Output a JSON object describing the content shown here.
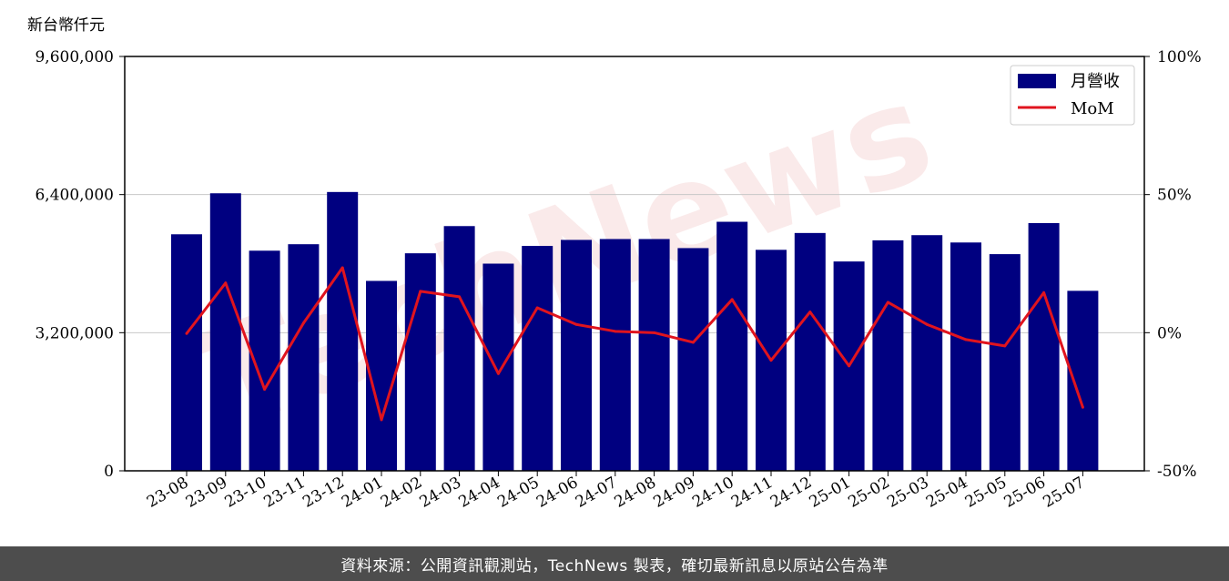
{
  "chart_data": {
    "type": "bar",
    "unit_label": "新台幣仟元",
    "categories": [
      "23-08",
      "23-09",
      "23-10",
      "23-11",
      "23-12",
      "24-01",
      "24-02",
      "24-03",
      "24-04",
      "24-05",
      "24-06",
      "24-07",
      "24-08",
      "24-09",
      "24-10",
      "24-11",
      "24-12",
      "25-01",
      "25-02",
      "25-03",
      "25-04",
      "25-05",
      "25-06",
      "25-07"
    ],
    "series": [
      {
        "name": "月營收",
        "axis": "left",
        "type": "bar",
        "color": "#000080",
        "values": [
          5480000,
          6430000,
          5100000,
          5250000,
          6460000,
          4400000,
          5040000,
          5670000,
          4800000,
          5210000,
          5350000,
          5370000,
          5370000,
          5160000,
          5770000,
          5120000,
          5510000,
          4850000,
          5340000,
          5460000,
          5290000,
          5020000,
          5740000,
          4170000
        ]
      },
      {
        "name": "MoM",
        "axis": "right",
        "type": "line",
        "color": "#e0141e",
        "values": [
          -0.3,
          18,
          -20.5,
          3.5,
          23.5,
          -31.5,
          15,
          13,
          -14.8,
          9,
          3,
          0.5,
          0,
          -3.5,
          12,
          -10,
          7.5,
          -12,
          11,
          3,
          -2.5,
          -4.8,
          14.5,
          -27
        ]
      }
    ],
    "y_left": {
      "ylim": [
        0,
        9600000
      ],
      "ticks": [
        "0",
        "3,200,000",
        "6,400,000",
        "9,600,000"
      ],
      "tick_values": [
        0,
        3200000,
        6400000,
        9600000
      ]
    },
    "y_right": {
      "ylim": [
        -50,
        100
      ],
      "ticks": [
        "-50%",
        "0%",
        "50%",
        "100%"
      ],
      "tick_values": [
        -50,
        0,
        50,
        100
      ]
    },
    "grid": "horizontal",
    "legend_position": "top-right",
    "watermark": "TechNews"
  },
  "footer": {
    "text": "資料來源：公開資訊觀測站，TechNews 製表，確切最新訊息以原站公告為準"
  }
}
